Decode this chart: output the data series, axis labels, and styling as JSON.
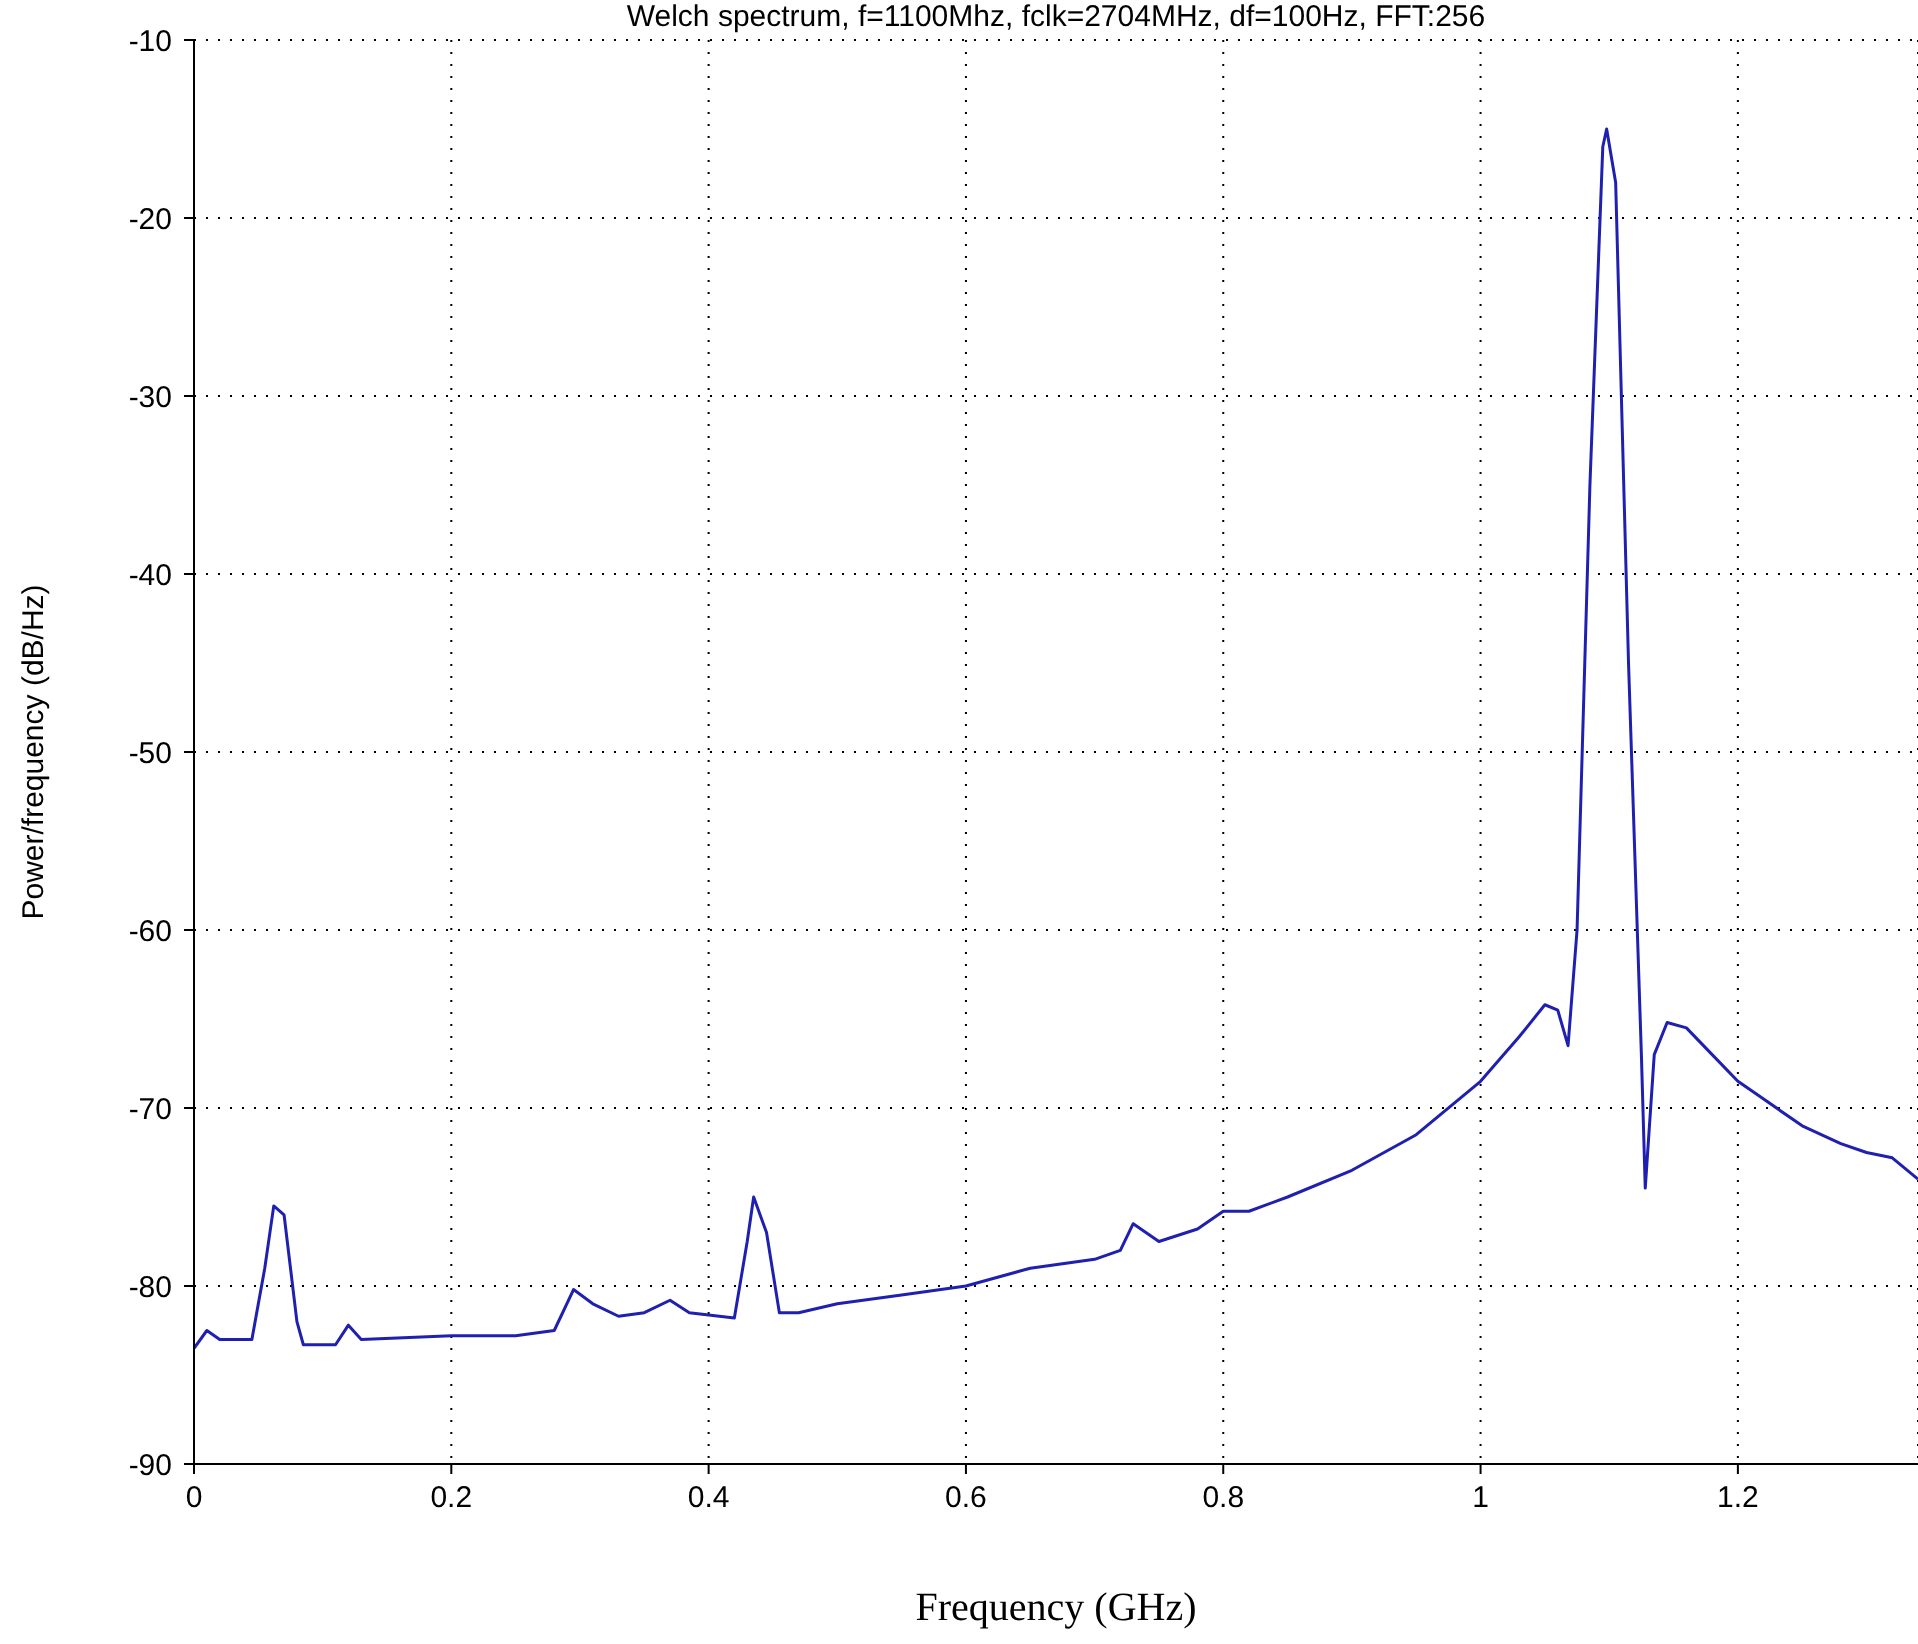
{
  "chart_data": {
    "type": "line",
    "title": "Welch spectrum, f=1100Mhz, fclk=2704MHz, df=100Hz, FFT:256",
    "xlabel": "Frequency (GHz)",
    "ylabel": "Power/frequency (dB/Hz)",
    "x": [
      0,
      0.01,
      0.02,
      0.045,
      0.055,
      0.062,
      0.07,
      0.08,
      0.085,
      0.11,
      0.12,
      0.13,
      0.2,
      0.25,
      0.28,
      0.295,
      0.31,
      0.33,
      0.35,
      0.37,
      0.385,
      0.42,
      0.43,
      0.435,
      0.445,
      0.455,
      0.47,
      0.5,
      0.55,
      0.6,
      0.65,
      0.7,
      0.72,
      0.73,
      0.75,
      0.78,
      0.8,
      0.82,
      0.85,
      0.9,
      0.95,
      1.0,
      1.03,
      1.05,
      1.06,
      1.068,
      1.075,
      1.085,
      1.095,
      1.098,
      1.105,
      1.115,
      1.125,
      1.128,
      1.135,
      1.145,
      1.16,
      1.18,
      1.2,
      1.22,
      1.25,
      1.28,
      1.3,
      1.32,
      1.34
    ],
    "series": [
      {
        "color": "#2020b0",
        "values": [
          -83.5,
          -82.5,
          -83,
          -83,
          -79,
          -75.5,
          -76,
          -82,
          -83.3,
          -83.3,
          -82.2,
          -83,
          -82.8,
          -82.8,
          -82.5,
          -80.2,
          -81,
          -81.7,
          -81.5,
          -80.8,
          -81.5,
          -81.8,
          -77.5,
          -75,
          -77,
          -81.5,
          -81.5,
          -81,
          -80.5,
          -80,
          -79,
          -78.5,
          -78,
          -76.5,
          -77.5,
          -76.8,
          -75.8,
          -75.8,
          -75,
          -73.5,
          -71.5,
          -68.5,
          -66,
          -64.2,
          -64.5,
          -66.5,
          -60,
          -35,
          -16,
          -15,
          -18,
          -45,
          -67,
          -74.5,
          -67,
          -65.2,
          -65.5,
          -67,
          -68.5,
          -69.5,
          -71,
          -72,
          -72.5,
          -72.8,
          -74
        ]
      }
    ],
    "xlim": [
      0,
      1.34
    ],
    "xticks": [
      0,
      0.2,
      0.4,
      0.6,
      0.8,
      1,
      1.2
    ],
    "ylim": [
      -90,
      -10
    ],
    "yticks": [
      -90,
      -80,
      -70,
      -60,
      -50,
      -40,
      -30,
      -20,
      -10
    ],
    "grid": true,
    "line_style": "solid",
    "marker": "none"
  }
}
